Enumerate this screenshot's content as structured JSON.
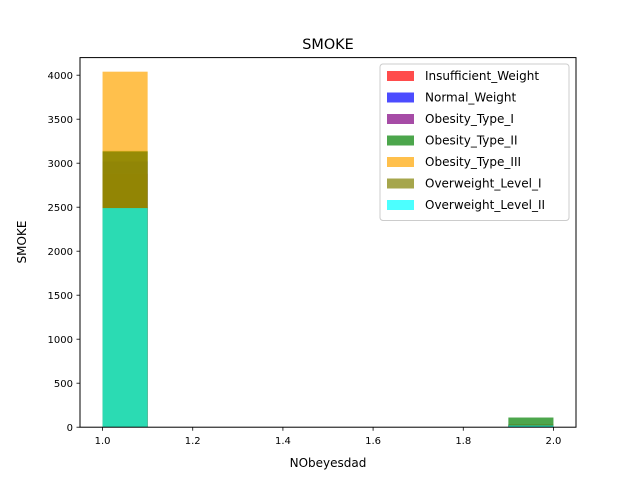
{
  "chart_data": {
    "type": "bar",
    "title": "SMOKE",
    "xlabel": "NObeyesdad",
    "ylabel": "SMOKE",
    "xlim": [
      0.95,
      2.05
    ],
    "ylim": [
      0,
      4200
    ],
    "xticks": [
      "1.0",
      "1.2",
      "1.4",
      "1.6",
      "1.8",
      "2.0"
    ],
    "xtick_values": [
      1.0,
      1.2,
      1.4,
      1.6,
      1.8,
      2.0
    ],
    "yticks": [
      "0",
      "500",
      "1000",
      "1500",
      "2000",
      "2500",
      "3000",
      "3500",
      "4000"
    ],
    "ytick_values": [
      0,
      500,
      1000,
      1500,
      2000,
      2500,
      3000,
      3500,
      4000
    ],
    "bins": [
      [
        1.0,
        1.1
      ],
      [
        1.9,
        2.0
      ]
    ],
    "grid": false,
    "legend_position": "upper right",
    "alpha": 0.7,
    "series": [
      {
        "name": "Insufficient_Weight",
        "color": "#ff0000",
        "values": [
          2500,
          20
        ]
      },
      {
        "name": "Normal_Weight",
        "color": "#0000ff",
        "values": [
          3020,
          30
        ]
      },
      {
        "name": "Obesity_Type_I",
        "color": "#800080",
        "values": [
          2880,
          20
        ]
      },
      {
        "name": "Obesity_Type_II",
        "color": "#008000",
        "values": [
          3140,
          110
        ]
      },
      {
        "name": "Obesity_Type_III",
        "color": "#ffa500",
        "values": [
          4040,
          5
        ]
      },
      {
        "name": "Overweight_Level_I",
        "color": "#808000",
        "values": [
          3130,
          30
        ]
      },
      {
        "name": "Overweight_Level_II",
        "color": "#00ffff",
        "values": [
          2490,
          20
        ]
      }
    ]
  }
}
